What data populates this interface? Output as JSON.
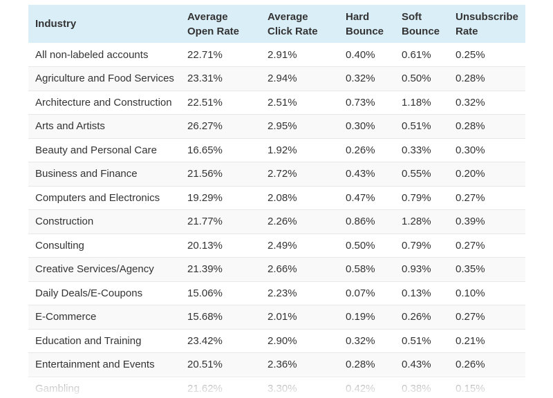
{
  "table": {
    "headers": [
      "Industry",
      "Average Open Rate",
      "Average Click Rate",
      "Hard Bounce",
      "Soft Bounce",
      "Unsubscribe Rate"
    ],
    "rows": [
      [
        "All non-labeled accounts",
        "22.71%",
        "2.91%",
        "0.40%",
        "0.61%",
        "0.25%"
      ],
      [
        "Agriculture and Food Services",
        "23.31%",
        "2.94%",
        "0.32%",
        "0.50%",
        "0.28%"
      ],
      [
        "Architecture and Construction",
        "22.51%",
        "2.51%",
        "0.73%",
        "1.18%",
        "0.32%"
      ],
      [
        "Arts and Artists",
        "26.27%",
        "2.95%",
        "0.30%",
        "0.51%",
        "0.28%"
      ],
      [
        "Beauty and Personal Care",
        "16.65%",
        "1.92%",
        "0.26%",
        "0.33%",
        "0.30%"
      ],
      [
        "Business and Finance",
        "21.56%",
        "2.72%",
        "0.43%",
        "0.55%",
        "0.20%"
      ],
      [
        "Computers and Electronics",
        "19.29%",
        "2.08%",
        "0.47%",
        "0.79%",
        "0.27%"
      ],
      [
        "Construction",
        "21.77%",
        "2.26%",
        "0.86%",
        "1.28%",
        "0.39%"
      ],
      [
        "Consulting",
        "20.13%",
        "2.49%",
        "0.50%",
        "0.79%",
        "0.27%"
      ],
      [
        "Creative Services/Agency",
        "21.39%",
        "2.66%",
        "0.58%",
        "0.93%",
        "0.35%"
      ],
      [
        "Daily Deals/E-Coupons",
        "15.06%",
        "2.23%",
        "0.07%",
        "0.13%",
        "0.10%"
      ],
      [
        "E-Commerce",
        "15.68%",
        "2.01%",
        "0.19%",
        "0.26%",
        "0.27%"
      ],
      [
        "Education and Training",
        "23.42%",
        "2.90%",
        "0.32%",
        "0.51%",
        "0.21%"
      ],
      [
        "Entertainment and Events",
        "20.51%",
        "2.36%",
        "0.28%",
        "0.43%",
        "0.26%"
      ],
      [
        "Gambling",
        "21.62%",
        "3.30%",
        "0.42%",
        "0.38%",
        "0.15%"
      ]
    ]
  },
  "colors": {
    "header_background": "#daeef8",
    "stripe_background": "#f9f9f9",
    "row_border": "#e7e7e7",
    "text": "#333333"
  }
}
